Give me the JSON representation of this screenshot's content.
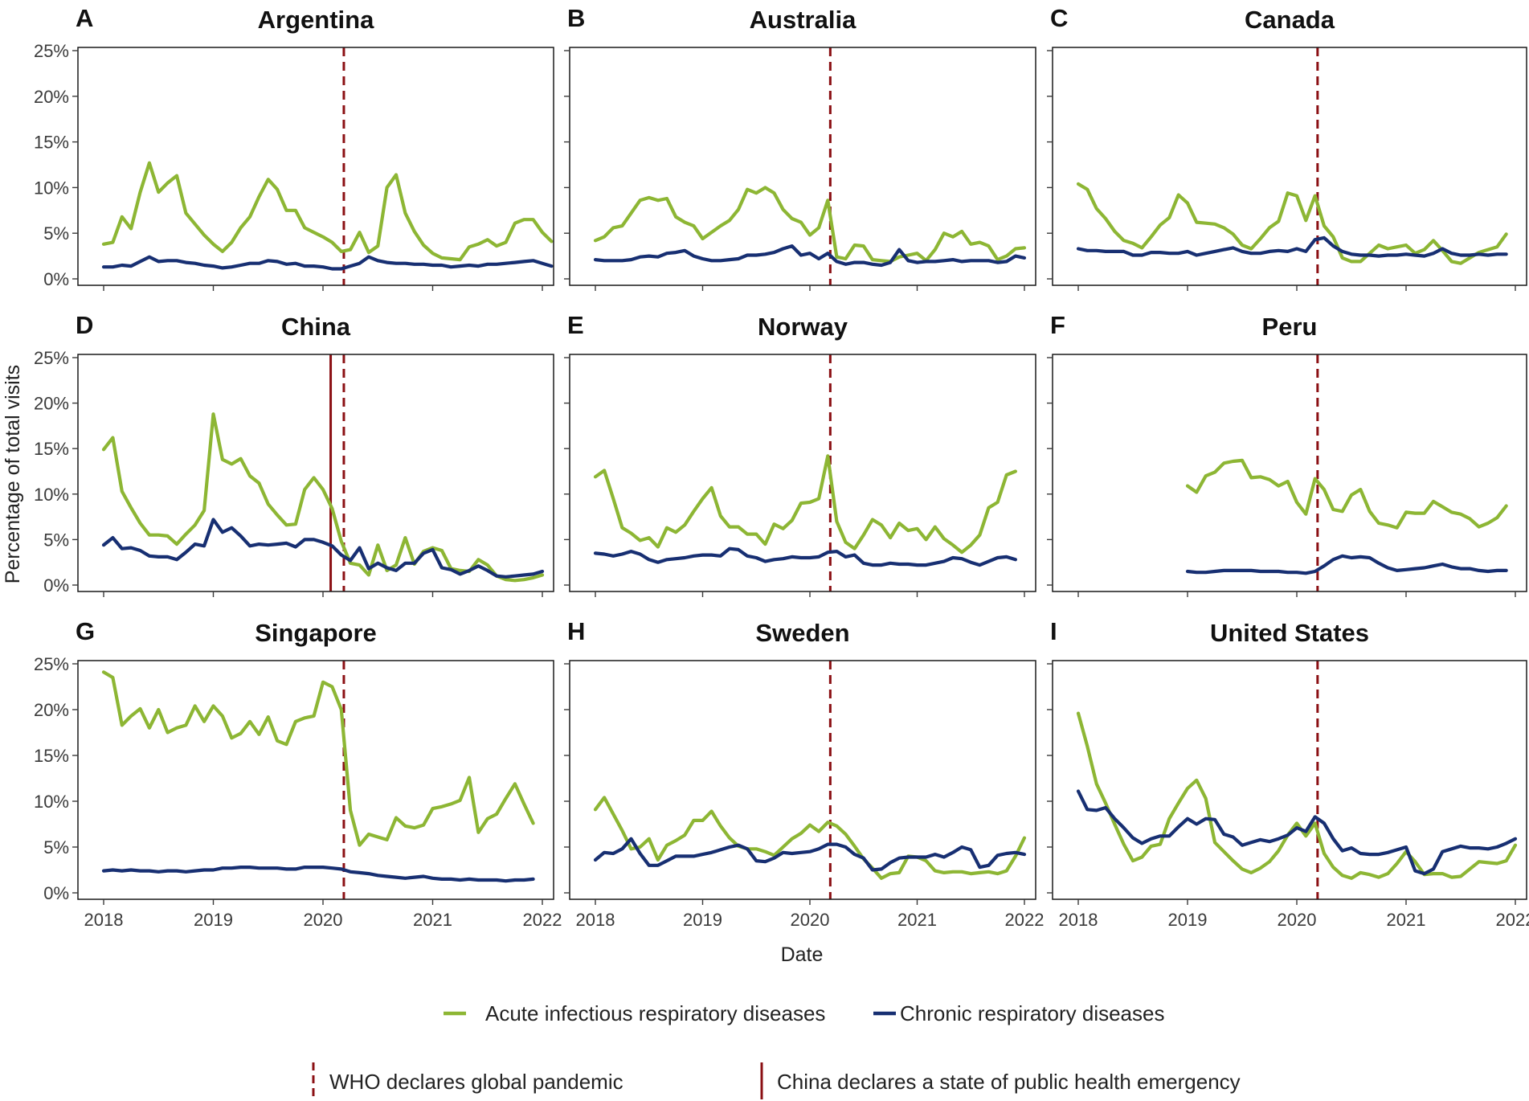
{
  "colors": {
    "acute": "#8db634",
    "chronic": "#172f72",
    "event": "#8b1014"
  },
  "chart_data": {
    "type": "line",
    "ylabel": "Percentage of total visits",
    "xlabel": "Date",
    "x_ticks": [
      "2018",
      "2019",
      "2020",
      "2021",
      "2022"
    ],
    "y_ticks": [
      "0%",
      "5%",
      "10%",
      "15%",
      "20%",
      "25%"
    ],
    "xlim": [
      2018,
      2022
    ],
    "ylim": [
      0,
      25
    ],
    "legend": {
      "series": [
        {
          "key": "acute",
          "label": "Acute infectious respiratory diseases"
        },
        {
          "key": "chronic",
          "label": "Chronic respiratory diseases"
        }
      ],
      "events": [
        {
          "key": "who",
          "label": "WHO declares global pandemic",
          "style": "dashed"
        },
        {
          "key": "china",
          "label": "China declares a state of public health emergency",
          "style": "solid"
        }
      ]
    },
    "events": {
      "who": 2020.19,
      "china": 2020.07
    },
    "panels": [
      {
        "letter": "A",
        "title": "Argentina",
        "start": 2018.0,
        "events": [
          "who"
        ],
        "acute": [
          3.8,
          4.0,
          6.8,
          5.5,
          9.5,
          12.7,
          9.5,
          10.5,
          11.3,
          7.2,
          6.0,
          4.8,
          3.8,
          3.0,
          4.0,
          5.6,
          6.8,
          9.0,
          10.9,
          9.8,
          7.5,
          7.5,
          5.6,
          5.1,
          4.6,
          4.0,
          3.0,
          3.2,
          5.1,
          2.9,
          3.6,
          10.0,
          11.4,
          7.2,
          5.2,
          3.7,
          2.8,
          2.3,
          2.2,
          2.1,
          3.5,
          3.8,
          4.3,
          3.6,
          4.0,
          6.1,
          6.5,
          6.5,
          5.1,
          4.1
        ],
        "chronic": [
          1.3,
          1.3,
          1.5,
          1.4,
          1.9,
          2.4,
          1.9,
          2.0,
          2.0,
          1.8,
          1.7,
          1.5,
          1.4,
          1.2,
          1.3,
          1.5,
          1.7,
          1.7,
          2.0,
          1.9,
          1.6,
          1.7,
          1.4,
          1.4,
          1.3,
          1.1,
          1.1,
          1.4,
          1.7,
          2.4,
          2.0,
          1.8,
          1.7,
          1.7,
          1.6,
          1.6,
          1.5,
          1.5,
          1.3,
          1.4,
          1.5,
          1.4,
          1.6,
          1.6,
          1.7,
          1.8,
          1.9,
          2.0,
          1.7,
          1.4
        ]
      },
      {
        "letter": "B",
        "title": "Australia",
        "start": 2018.0,
        "events": [
          "who"
        ],
        "acute": [
          4.2,
          4.6,
          5.6,
          5.8,
          7.2,
          8.6,
          8.9,
          8.6,
          8.8,
          6.8,
          6.2,
          5.8,
          4.4,
          5.1,
          5.8,
          6.4,
          7.6,
          9.8,
          9.4,
          10.0,
          9.4,
          7.6,
          6.6,
          6.2,
          4.8,
          5.6,
          8.6,
          2.4,
          2.2,
          3.7,
          3.6,
          2.1,
          2.0,
          1.9,
          2.4,
          2.6,
          2.8,
          2.0,
          3.2,
          5.0,
          4.6,
          5.2,
          3.8,
          4.0,
          3.6,
          2.1,
          2.5,
          3.3,
          3.4
        ],
        "chronic": [
          2.1,
          2.0,
          2.0,
          2.0,
          2.1,
          2.4,
          2.5,
          2.4,
          2.8,
          2.9,
          3.1,
          2.5,
          2.2,
          2.0,
          2.0,
          2.1,
          2.2,
          2.6,
          2.6,
          2.7,
          2.9,
          3.3,
          3.6,
          2.6,
          2.8,
          2.2,
          2.8,
          1.9,
          1.6,
          1.8,
          1.8,
          1.6,
          1.5,
          1.8,
          3.2,
          2.0,
          1.8,
          1.9,
          1.9,
          2.0,
          2.1,
          1.9,
          2.0,
          2.0,
          2.0,
          1.8,
          1.9,
          2.5,
          2.3
        ]
      },
      {
        "letter": "C",
        "title": "Canada",
        "start": 2018.0,
        "events": [
          "who"
        ],
        "acute": [
          10.4,
          9.8,
          7.7,
          6.6,
          5.2,
          4.2,
          3.9,
          3.4,
          4.6,
          5.9,
          6.7,
          9.2,
          8.3,
          6.2,
          6.1,
          6.0,
          5.6,
          4.9,
          3.7,
          3.3,
          4.4,
          5.6,
          6.3,
          9.4,
          9.1,
          6.4,
          9.1,
          5.8,
          4.6,
          2.3,
          1.9,
          1.9,
          2.8,
          3.7,
          3.3,
          3.5,
          3.7,
          2.8,
          3.2,
          4.2,
          3.1,
          1.9,
          1.7,
          2.3,
          2.9,
          3.2,
          3.5,
          4.9
        ],
        "chronic": [
          3.3,
          3.1,
          3.1,
          3.0,
          3.0,
          3.0,
          2.6,
          2.6,
          2.9,
          2.9,
          2.8,
          2.8,
          3.0,
          2.6,
          2.8,
          3.0,
          3.2,
          3.4,
          3.0,
          2.8,
          2.8,
          3.0,
          3.1,
          3.0,
          3.3,
          3.0,
          4.3,
          4.5,
          3.6,
          3.0,
          2.7,
          2.6,
          2.6,
          2.5,
          2.6,
          2.6,
          2.7,
          2.6,
          2.5,
          2.8,
          3.3,
          2.8,
          2.6,
          2.6,
          2.7,
          2.6,
          2.7,
          2.7
        ]
      },
      {
        "letter": "D",
        "title": "China",
        "start": 2018.0,
        "events": [
          "china",
          "who"
        ],
        "acute": [
          14.9,
          16.2,
          10.3,
          8.5,
          6.8,
          5.5,
          5.5,
          5.4,
          4.5,
          5.6,
          6.6,
          8.2,
          18.8,
          13.8,
          13.3,
          13.9,
          12.0,
          11.2,
          8.9,
          7.7,
          6.6,
          6.7,
          10.5,
          11.8,
          10.5,
          8.4,
          4.8,
          2.4,
          2.2,
          1.1,
          4.4,
          1.6,
          2.2,
          5.2,
          2.3,
          3.7,
          4.1,
          3.8,
          1.8,
          1.6,
          1.5,
          2.8,
          2.2,
          1.0,
          0.6,
          0.5,
          0.6,
          0.8,
          1.1
        ],
        "chronic": [
          4.4,
          5.2,
          4.0,
          4.1,
          3.8,
          3.2,
          3.1,
          3.1,
          2.8,
          3.6,
          4.5,
          4.3,
          7.2,
          5.8,
          6.3,
          5.4,
          4.3,
          4.5,
          4.4,
          4.5,
          4.6,
          4.2,
          5.0,
          5.0,
          4.7,
          4.3,
          3.3,
          2.7,
          4.1,
          1.8,
          2.4,
          1.9,
          1.6,
          2.4,
          2.4,
          3.5,
          3.9,
          1.9,
          1.7,
          1.2,
          1.6,
          2.1,
          1.6,
          1.0,
          0.9,
          1.0,
          1.1,
          1.2,
          1.5
        ]
      },
      {
        "letter": "E",
        "title": "Norway",
        "start": 2018.0,
        "events": [
          "who"
        ],
        "acute": [
          11.9,
          12.6,
          9.5,
          6.3,
          5.7,
          4.9,
          5.2,
          4.2,
          6.3,
          5.8,
          6.6,
          8.1,
          9.5,
          10.7,
          7.6,
          6.4,
          6.4,
          5.6,
          5.6,
          4.5,
          6.7,
          6.2,
          7.1,
          9.0,
          9.1,
          9.5,
          14.2,
          7.0,
          4.7,
          4.0,
          5.5,
          7.2,
          6.6,
          5.2,
          6.8,
          6.0,
          6.2,
          5.0,
          6.4,
          5.1,
          4.4,
          3.6,
          4.4,
          5.5,
          8.5,
          9.1,
          12.1,
          12.5
        ],
        "chronic": [
          3.5,
          3.4,
          3.2,
          3.4,
          3.7,
          3.4,
          2.8,
          2.5,
          2.8,
          2.9,
          3.0,
          3.2,
          3.3,
          3.3,
          3.2,
          4.0,
          3.9,
          3.2,
          3.0,
          2.6,
          2.8,
          2.9,
          3.1,
          3.0,
          3.0,
          3.1,
          3.6,
          3.7,
          3.1,
          3.3,
          2.4,
          2.2,
          2.2,
          2.4,
          2.3,
          2.3,
          2.2,
          2.2,
          2.4,
          2.6,
          3.0,
          2.9,
          2.5,
          2.2,
          2.6,
          3.0,
          3.1,
          2.8
        ]
      },
      {
        "letter": "F",
        "title": "Peru",
        "start": 2019.0,
        "events": [
          "who"
        ],
        "acute": [
          10.9,
          10.2,
          12.0,
          12.4,
          13.4,
          13.6,
          13.7,
          11.8,
          11.9,
          11.6,
          10.9,
          11.4,
          9.1,
          7.8,
          11.7,
          10.5,
          8.3,
          8.1,
          9.9,
          10.5,
          8.1,
          6.8,
          6.6,
          6.3,
          8.0,
          7.9,
          7.9,
          9.2,
          8.6,
          8.0,
          7.8,
          7.3,
          6.4,
          6.8,
          7.4,
          8.7
        ],
        "chronic": [
          1.5,
          1.4,
          1.4,
          1.5,
          1.6,
          1.6,
          1.6,
          1.6,
          1.5,
          1.5,
          1.5,
          1.4,
          1.4,
          1.3,
          1.5,
          2.1,
          2.8,
          3.2,
          3.0,
          3.1,
          3.0,
          2.4,
          1.9,
          1.6,
          1.7,
          1.8,
          1.9,
          2.1,
          2.3,
          2.0,
          1.8,
          1.8,
          1.6,
          1.5,
          1.6,
          1.6
        ]
      },
      {
        "letter": "G",
        "title": "Singapore",
        "start": 2018.0,
        "events": [
          "who"
        ],
        "acute": [
          24.1,
          23.5,
          18.3,
          19.3,
          20.1,
          18.0,
          20.0,
          17.5,
          18.0,
          18.3,
          20.4,
          18.7,
          20.4,
          19.3,
          16.9,
          17.4,
          18.7,
          17.3,
          19.2,
          16.6,
          16.2,
          18.7,
          19.1,
          19.3,
          23.0,
          22.5,
          20.0,
          9.0,
          5.2,
          6.4,
          6.1,
          5.8,
          8.2,
          7.3,
          7.1,
          7.4,
          9.2,
          9.4,
          9.7,
          10.1,
          12.6,
          6.6,
          8.1,
          8.6,
          10.3,
          11.9,
          9.7,
          7.6
        ],
        "chronic": [
          2.4,
          2.5,
          2.4,
          2.5,
          2.4,
          2.4,
          2.3,
          2.4,
          2.4,
          2.3,
          2.4,
          2.5,
          2.5,
          2.7,
          2.7,
          2.8,
          2.8,
          2.7,
          2.7,
          2.7,
          2.6,
          2.6,
          2.8,
          2.8,
          2.8,
          2.7,
          2.6,
          2.3,
          2.2,
          2.1,
          1.9,
          1.8,
          1.7,
          1.6,
          1.7,
          1.8,
          1.6,
          1.5,
          1.5,
          1.4,
          1.5,
          1.4,
          1.4,
          1.4,
          1.3,
          1.4,
          1.4,
          1.5
        ]
      },
      {
        "letter": "H",
        "title": "Sweden",
        "start": 2018.0,
        "events": [
          "who"
        ],
        "acute": [
          9.1,
          10.4,
          8.6,
          6.8,
          4.8,
          5.0,
          5.9,
          3.6,
          5.2,
          5.7,
          6.3,
          7.9,
          7.9,
          8.9,
          7.3,
          6.0,
          5.1,
          4.8,
          4.8,
          4.5,
          4.1,
          5.0,
          5.9,
          6.5,
          7.4,
          6.7,
          7.7,
          7.3,
          6.4,
          5.1,
          3.7,
          2.7,
          1.6,
          2.1,
          2.2,
          4.0,
          3.9,
          3.5,
          2.4,
          2.2,
          2.3,
          2.3,
          2.1,
          2.2,
          2.3,
          2.1,
          2.4,
          4.0,
          6.0
        ],
        "chronic": [
          3.6,
          4.4,
          4.3,
          4.8,
          5.9,
          4.3,
          3.0,
          3.0,
          3.5,
          4.0,
          4.0,
          4.0,
          4.2,
          4.4,
          4.7,
          5.0,
          5.2,
          4.8,
          3.5,
          3.4,
          3.8,
          4.4,
          4.3,
          4.4,
          4.5,
          4.8,
          5.3,
          5.3,
          5.0,
          4.2,
          3.8,
          2.5,
          2.6,
          3.3,
          3.8,
          3.9,
          3.9,
          3.9,
          4.2,
          3.9,
          4.4,
          5.0,
          4.7,
          2.8,
          3.0,
          4.1,
          4.3,
          4.4,
          4.2
        ]
      },
      {
        "letter": "I",
        "title": "United States",
        "start": 2018.0,
        "events": [
          "who"
        ],
        "acute": [
          19.6,
          16.0,
          11.9,
          9.8,
          7.5,
          5.3,
          3.5,
          3.9,
          5.1,
          5.3,
          8.1,
          9.8,
          11.4,
          12.3,
          10.3,
          5.5,
          4.5,
          3.5,
          2.6,
          2.2,
          2.7,
          3.4,
          4.6,
          6.3,
          7.6,
          6.2,
          7.6,
          4.3,
          2.8,
          1.9,
          1.6,
          2.2,
          2.0,
          1.7,
          2.1,
          3.2,
          4.5,
          3.4,
          2.0,
          2.1,
          2.1,
          1.7,
          1.8,
          2.6,
          3.4,
          3.3,
          3.2,
          3.5,
          5.2
        ],
        "chronic": [
          11.1,
          9.1,
          9.0,
          9.3,
          8.1,
          7.1,
          6.0,
          5.4,
          5.9,
          6.2,
          6.2,
          7.2,
          8.1,
          7.5,
          8.1,
          8.0,
          6.4,
          6.1,
          5.2,
          5.5,
          5.8,
          5.6,
          5.9,
          6.3,
          7.1,
          6.7,
          8.3,
          7.6,
          5.9,
          4.6,
          4.9,
          4.3,
          4.2,
          4.2,
          4.4,
          4.7,
          5.0,
          2.4,
          2.1,
          2.6,
          4.5,
          4.8,
          5.1,
          4.9,
          4.9,
          4.8,
          5.0,
          5.4,
          5.9
        ]
      }
    ]
  }
}
